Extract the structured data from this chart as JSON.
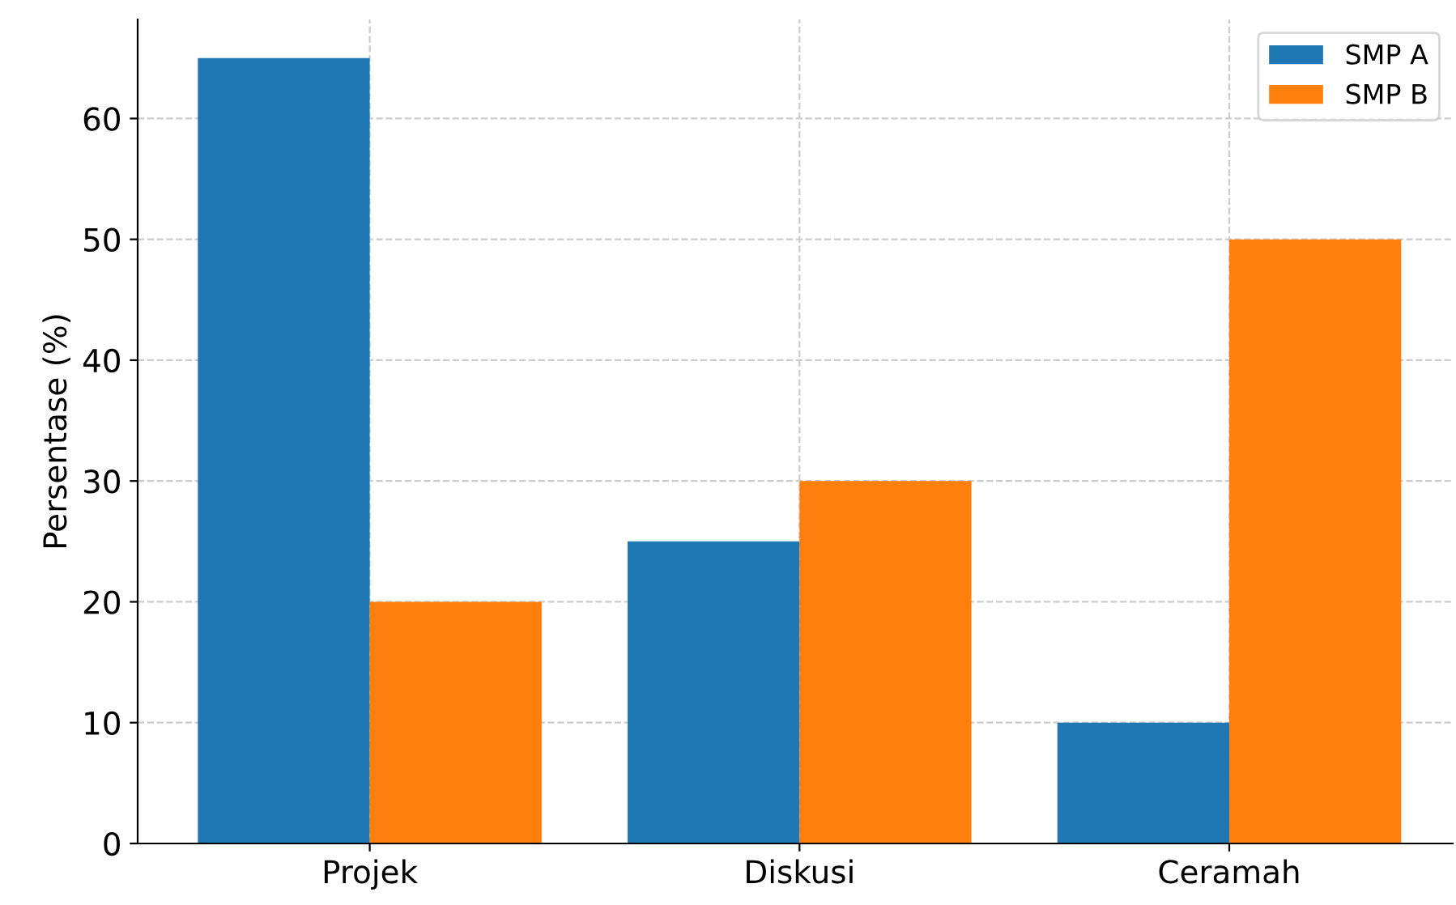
{
  "chart_data": {
    "type": "bar",
    "ylabel": "Persentase (%)",
    "categories": [
      "Projek",
      "Diskusi",
      "Ceramah"
    ],
    "series": [
      {
        "name": "SMP A",
        "color": "#1f77b4",
        "values": [
          65,
          25,
          10
        ]
      },
      {
        "name": "SMP B",
        "color": "#ff7f0e",
        "values": [
          20,
          30,
          50
        ]
      }
    ],
    "ylim": [
      0,
      68.2
    ],
    "yticks": [
      0,
      10,
      20,
      30,
      40,
      50,
      60
    ],
    "grid": true,
    "legend": "top right"
  }
}
